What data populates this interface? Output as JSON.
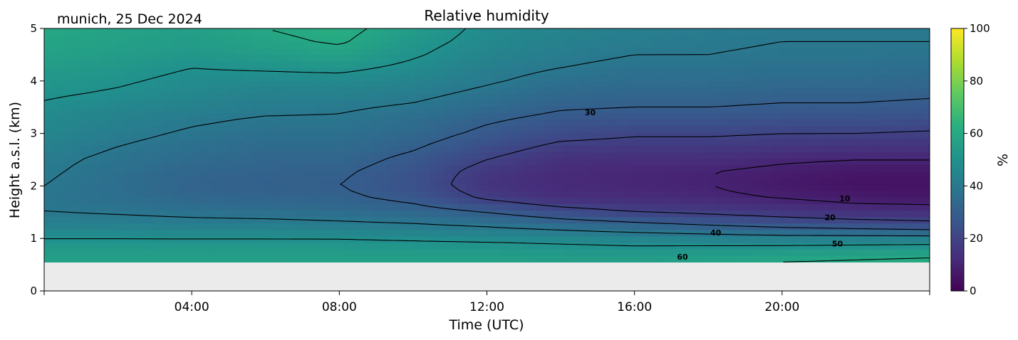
{
  "chart_data": {
    "type": "heatmap",
    "title": "Relative humidity",
    "subtitle": "munich, 25 Dec 2024",
    "xlabel": "Time (UTC)",
    "ylabel": "Height a.s.l. (km)",
    "xlim": [
      0,
      24
    ],
    "ylim": [
      0,
      5
    ],
    "x_ticks": [
      {
        "value": 4,
        "label": "04:00"
      },
      {
        "value": 8,
        "label": "08:00"
      },
      {
        "value": 12,
        "label": "12:00"
      },
      {
        "value": 16,
        "label": "16:00"
      },
      {
        "value": 20,
        "label": "20:00"
      }
    ],
    "y_ticks": [
      {
        "value": 0,
        "label": "0"
      },
      {
        "value": 1,
        "label": "1"
      },
      {
        "value": 2,
        "label": "2"
      },
      {
        "value": 3,
        "label": "3"
      },
      {
        "value": 4,
        "label": "4"
      },
      {
        "value": 5,
        "label": "5"
      }
    ],
    "colorbar": {
      "label": "%",
      "range": [
        0,
        100
      ],
      "colormap": "viridis",
      "ticks": [
        {
          "value": 0,
          "label": "0"
        },
        {
          "value": 20,
          "label": "20"
        },
        {
          "value": 40,
          "label": "40"
        },
        {
          "value": 60,
          "label": "60"
        },
        {
          "value": 80,
          "label": "80"
        },
        {
          "value": 100,
          "label": "100"
        }
      ]
    },
    "data_min_height": 0.55,
    "no_data_color": "#ebebeb",
    "x": [
      0,
      2,
      4,
      6,
      8,
      10,
      12,
      14,
      16,
      18,
      20,
      22,
      24
    ],
    "y": [
      0.55,
      0.75,
      1.0,
      1.25,
      1.5,
      1.75,
      2.0,
      2.25,
      2.5,
      2.75,
      3.0,
      3.25,
      3.5,
      3.75,
      4.0,
      4.25,
      4.5,
      4.75,
      5.0
    ],
    "z": [
      [
        57,
        57,
        57,
        57,
        57,
        57,
        57,
        56,
        56,
        58,
        60,
        61,
        62
      ],
      [
        55,
        55,
        55,
        55,
        55,
        55,
        55,
        54,
        53,
        54,
        55,
        56,
        57
      ],
      [
        50,
        50,
        50,
        50,
        50,
        49,
        48,
        47,
        46,
        45,
        44,
        44,
        44
      ],
      [
        44,
        44,
        43,
        43,
        42,
        41,
        39,
        36,
        33,
        30,
        27,
        25,
        23
      ],
      [
        40,
        39,
        38,
        37,
        36,
        34,
        30,
        24,
        20,
        18,
        16,
        14,
        14
      ],
      [
        39,
        37,
        34,
        33,
        32,
        28,
        19,
        14,
        13,
        12,
        10,
        8,
        7
      ],
      [
        40,
        36,
        32,
        31,
        30,
        25,
        15,
        12,
        11,
        10,
        7,
        5,
        5
      ],
      [
        41,
        37,
        33,
        32,
        31,
        26,
        16,
        12,
        11,
        10,
        8,
        6,
        6
      ],
      [
        42,
        38,
        35,
        33,
        33,
        28,
        20,
        14,
        13,
        13,
        11,
        10,
        10
      ],
      [
        44,
        40,
        37,
        35,
        35,
        31,
        24,
        18,
        17,
        17,
        16,
        15,
        15
      ],
      [
        46,
        42,
        39,
        37,
        37,
        34,
        28,
        23,
        21,
        21,
        20,
        20,
        19
      ],
      [
        47,
        44,
        41,
        39,
        39,
        36,
        31,
        27,
        26,
        26,
        25,
        25,
        24
      ],
      [
        49,
        46,
        44,
        42,
        41,
        39,
        35,
        31,
        30,
        30,
        29,
        29,
        28
      ],
      [
        51,
        49,
        46,
        44,
        44,
        42,
        38,
        34,
        33,
        33,
        32,
        32,
        31
      ],
      [
        53,
        51,
        48,
        47,
        47,
        45,
        41,
        37,
        36,
        36,
        35,
        35,
        34
      ],
      [
        55,
        53,
        50,
        51,
        52,
        48,
        43,
        40,
        38,
        38,
        37,
        37,
        36
      ],
      [
        57,
        55,
        53,
        55,
        57,
        51,
        45,
        42,
        40,
        40,
        39,
        39,
        38
      ],
      [
        59,
        57,
        55,
        58,
        61,
        53,
        47,
        44,
        42,
        41,
        40,
        40,
        40
      ],
      [
        60,
        58,
        56,
        60,
        63,
        55,
        48,
        45,
        43,
        42,
        41,
        41,
        41
      ]
    ],
    "contour_levels": [
      10,
      20,
      30,
      40,
      50,
      60
    ],
    "contour_labels": [
      {
        "label": "10",
        "x": 21.7,
        "y": 1.76
      },
      {
        "label": "20",
        "x": 21.3,
        "y": 1.4
      },
      {
        "label": "30",
        "x": 14.8,
        "y": 3.4
      },
      {
        "label": "40",
        "x": 18.2,
        "y": 1.11
      },
      {
        "label": "50",
        "x": 21.5,
        "y": 0.9
      },
      {
        "label": "60",
        "x": 17.3,
        "y": 0.65
      }
    ]
  }
}
